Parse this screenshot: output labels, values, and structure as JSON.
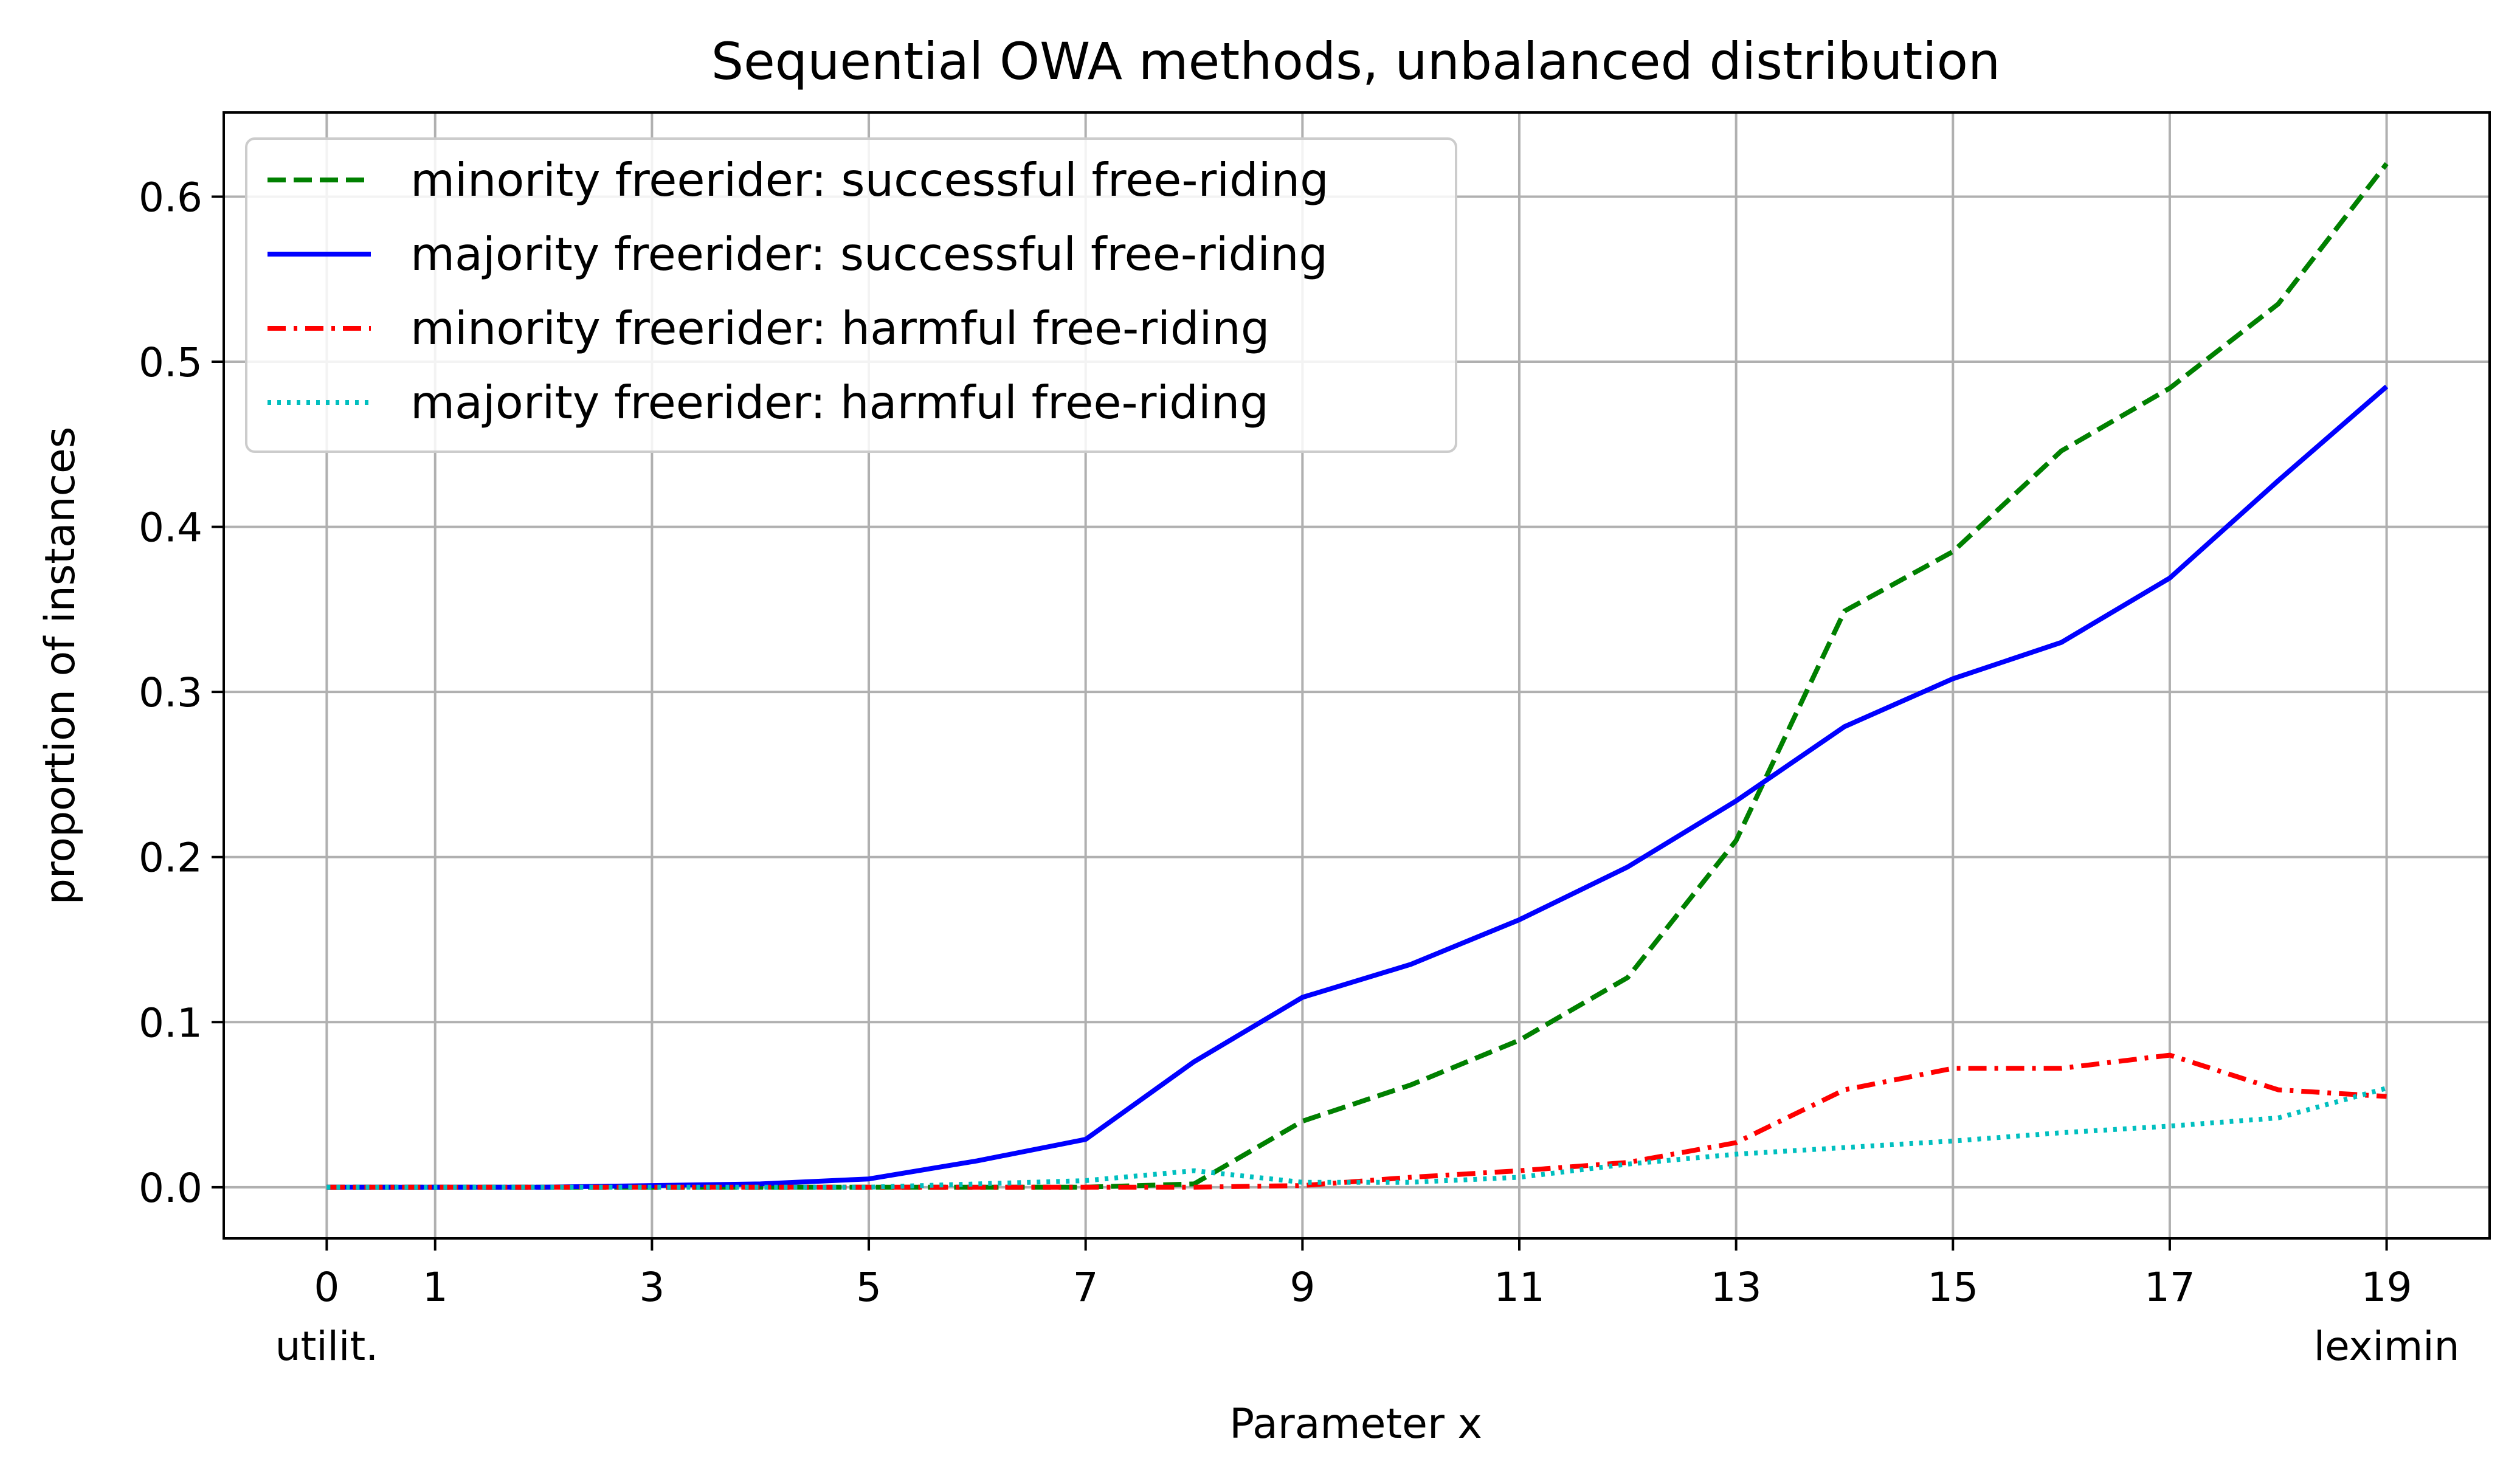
{
  "chart_data": {
    "type": "line",
    "title": "Sequential OWA methods, unbalanced distribution",
    "xlabel": "Parameter x",
    "ylabel": "proportion of instances",
    "xlim": [
      -0.95,
      19.95
    ],
    "ylim": [
      -0.031,
      0.651
    ],
    "grid": true,
    "legend_position": "top-left",
    "x_ticks": [
      0,
      1,
      3,
      5,
      7,
      9,
      11,
      13,
      15,
      17,
      19
    ],
    "x_tick_labels": [
      "0",
      "1",
      "3",
      "5",
      "7",
      "9",
      "11",
      "13",
      "15",
      "17",
      "19"
    ],
    "x_tick_sublabels": [
      {
        "x": 0,
        "label": "utilit."
      },
      {
        "x": 19,
        "label": "leximin"
      }
    ],
    "y_ticks": [
      0.0,
      0.1,
      0.2,
      0.3,
      0.4,
      0.5,
      0.6
    ],
    "y_tick_labels": [
      "0.0",
      "0.1",
      "0.2",
      "0.3",
      "0.4",
      "0.5",
      "0.6"
    ],
    "x": [
      0,
      1,
      2,
      3,
      4,
      5,
      6,
      7,
      8,
      9,
      10,
      11,
      12,
      13,
      14,
      15,
      16,
      17,
      18,
      19
    ],
    "series": [
      {
        "name": "minority freerider: successful free-riding",
        "color": "#008000",
        "style": "dashed",
        "values": [
          0,
          0,
          0,
          0,
          0,
          0,
          0,
          0,
          0.002,
          0.04,
          0.062,
          0.089,
          0.127,
          0.21,
          0.349,
          0.385,
          0.446,
          0.484,
          0.535,
          0.62
        ]
      },
      {
        "name": "majority freerider: successful free-riding",
        "color": "#0000ff",
        "style": "solid",
        "values": [
          0,
          0,
          0,
          0.001,
          0.002,
          0.005,
          0.016,
          0.029,
          0.076,
          0.115,
          0.135,
          0.162,
          0.194,
          0.234,
          0.279,
          0.308,
          0.33,
          0.369,
          0.428,
          0.485
        ]
      },
      {
        "name": "minority freerider: harmful free-riding",
        "color": "#ff0000",
        "style": "dashdot",
        "values": [
          0,
          0,
          0,
          0,
          0,
          0,
          0,
          0,
          0,
          0.001,
          0.006,
          0.01,
          0.015,
          0.027,
          0.059,
          0.072,
          0.072,
          0.08,
          0.059,
          0.055
        ]
      },
      {
        "name": "majority freerider: harmful free-riding",
        "color": "#00bfbf",
        "style": "dotted",
        "values": [
          0,
          0,
          0,
          0,
          0,
          0,
          0.002,
          0.004,
          0.01,
          0.003,
          0.003,
          0.006,
          0.014,
          0.02,
          0.024,
          0.028,
          0.033,
          0.037,
          0.042,
          0.06
        ]
      }
    ]
  }
}
